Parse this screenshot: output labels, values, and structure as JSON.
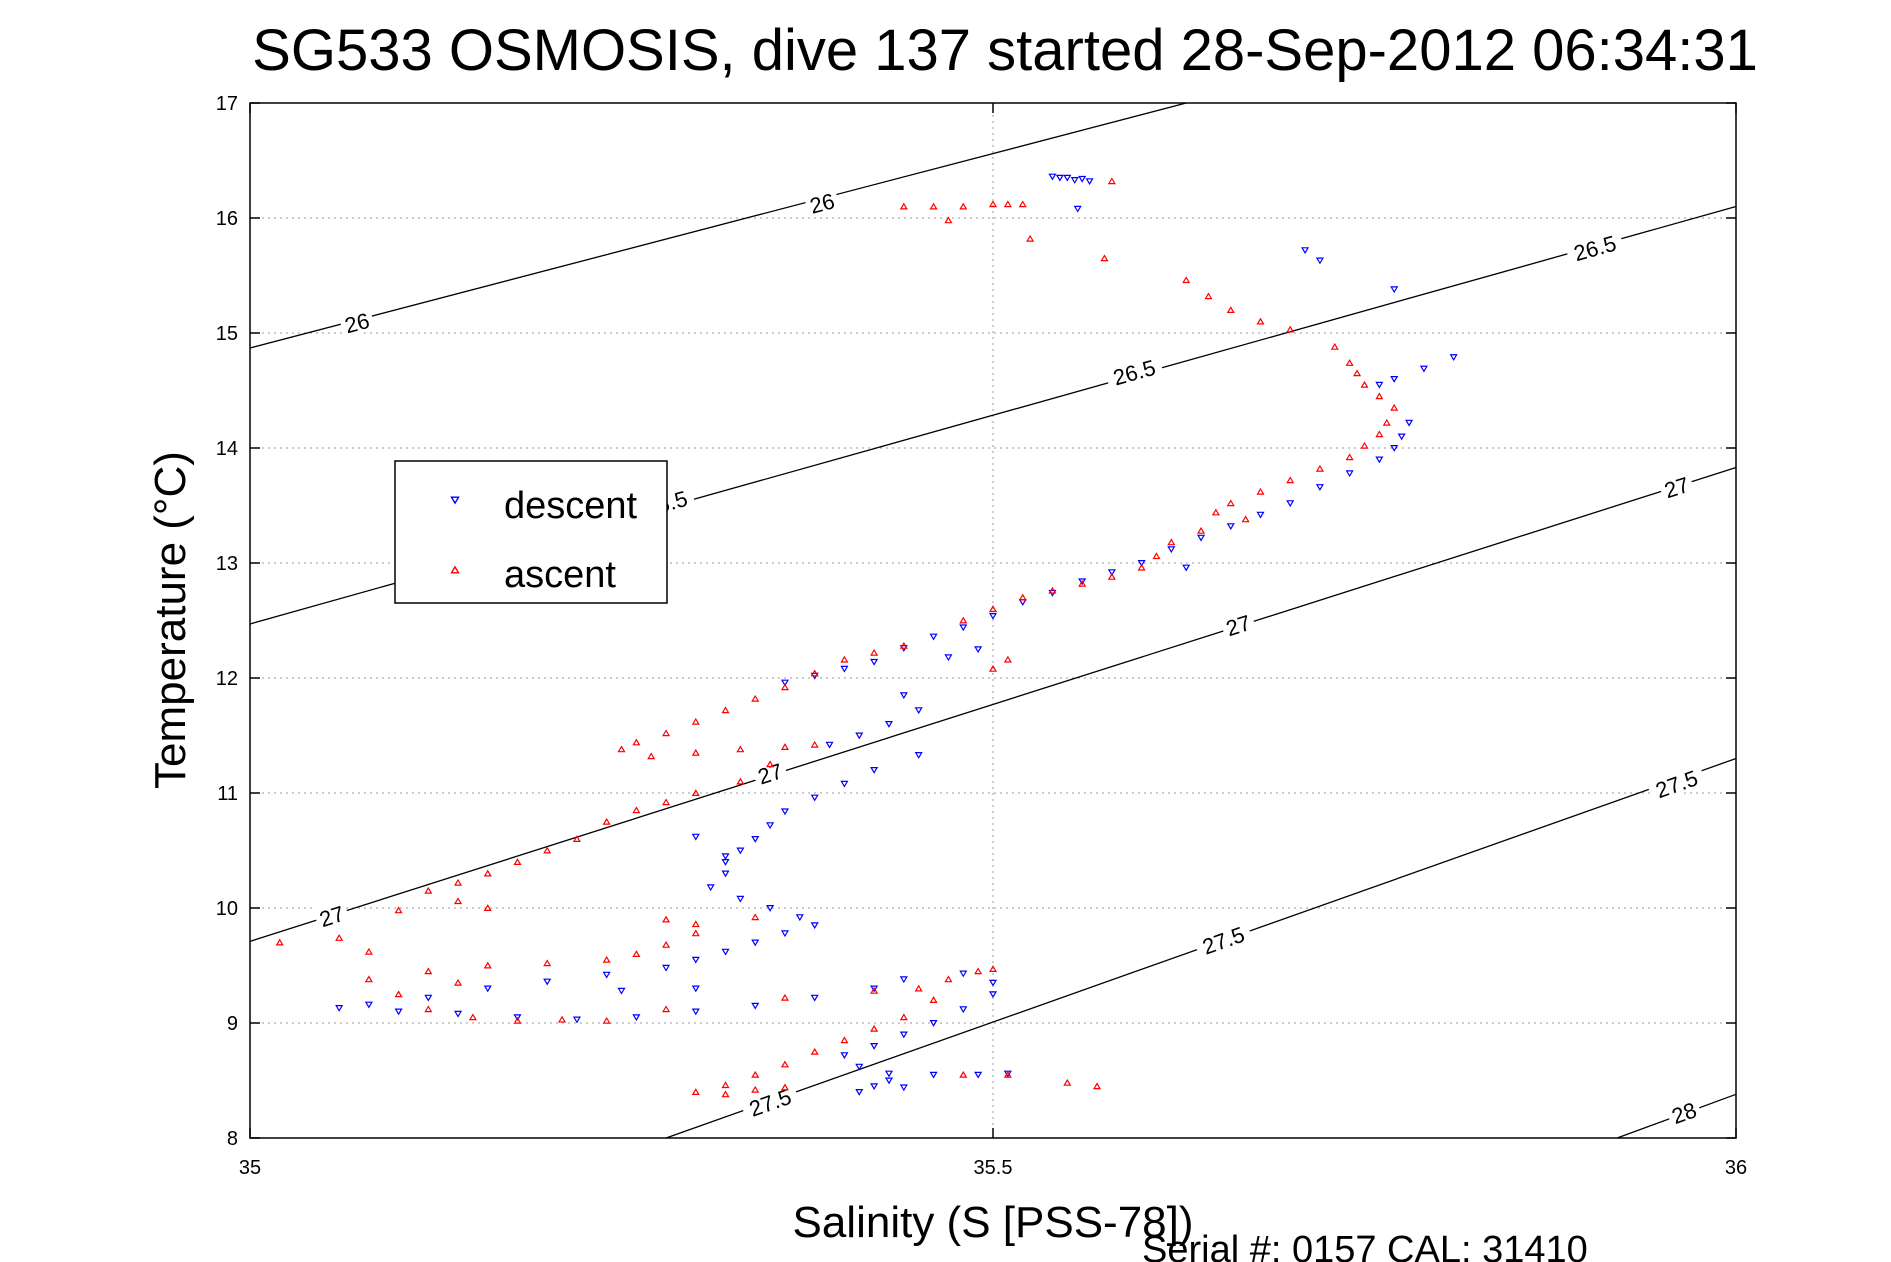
{
  "chart_data": {
    "type": "scatter",
    "title": "SG533 OSMOSIS, dive 137 started 28-Sep-2012 06:34:31",
    "xlabel": "Salinity (S [PSS-78])",
    "ylabel": "Temperature (°C)",
    "xlim": [
      35,
      36
    ],
    "ylim": [
      8,
      17
    ],
    "x_ticks": [
      {
        "value": 35,
        "label": "35"
      },
      {
        "value": 35.5,
        "label": "35.5"
      },
      {
        "value": 36,
        "label": "36"
      }
    ],
    "y_ticks": [
      {
        "value": 8,
        "label": "8"
      },
      {
        "value": 9,
        "label": "9"
      },
      {
        "value": 10,
        "label": "10"
      },
      {
        "value": 11,
        "label": "11"
      },
      {
        "value": 12,
        "label": "12"
      },
      {
        "value": 13,
        "label": "13"
      },
      {
        "value": 14,
        "label": "14"
      },
      {
        "value": 15,
        "label": "15"
      },
      {
        "value": 16,
        "label": "16"
      },
      {
        "value": 17,
        "label": "17"
      }
    ],
    "grid": true,
    "legend_position": "left",
    "density_contours": [
      {
        "level": "26",
        "points": [
          [
            35,
            14.87
          ],
          [
            35.63,
            17.0
          ]
        ],
        "labels": [
          {
            "x": 35.072,
            "y": 15.09,
            "text": "26"
          },
          {
            "x": 35.385,
            "y": 16.13,
            "text": "26"
          }
        ]
      },
      {
        "level": "26.5",
        "points": [
          [
            35,
            12.47
          ],
          [
            36,
            16.1
          ]
        ],
        "labels": [
          {
            "x": 35.28,
            "y": 13.52,
            "text": "26.5"
          },
          {
            "x": 35.595,
            "y": 14.66,
            "text": "26.5"
          },
          {
            "x": 35.905,
            "y": 15.74,
            "text": "26.5"
          }
        ]
      },
      {
        "level": "27",
        "points": [
          [
            35,
            9.71
          ],
          [
            36,
            13.83
          ]
        ],
        "labels": [
          {
            "x": 35.055,
            "y": 9.93,
            "text": "27"
          },
          {
            "x": 35.35,
            "y": 11.17,
            "text": "27"
          },
          {
            "x": 35.665,
            "y": 12.46,
            "text": "27"
          },
          {
            "x": 35.96,
            "y": 13.66,
            "text": "27"
          }
        ]
      },
      {
        "level": "27.5",
        "points": [
          [
            35.28,
            8.0
          ],
          [
            36,
            11.3
          ]
        ],
        "labels": [
          {
            "x": 35.35,
            "y": 8.31,
            "text": "27.5"
          },
          {
            "x": 35.655,
            "y": 9.72,
            "text": "27.5"
          },
          {
            "x": 35.96,
            "y": 11.08,
            "text": "27.5"
          }
        ]
      },
      {
        "level": "28",
        "points": [
          [
            35.92,
            8.0
          ],
          [
            36,
            8.38
          ]
        ],
        "labels": [
          {
            "x": 35.965,
            "y": 8.22,
            "text": "28"
          }
        ]
      }
    ],
    "series": [
      {
        "name": "descent",
        "color": "#0000ff",
        "marker": "triangle-down",
        "points": [
          [
            35.54,
            16.36
          ],
          [
            35.55,
            16.35
          ],
          [
            35.56,
            16.34
          ],
          [
            35.555,
            16.33
          ],
          [
            35.545,
            16.35
          ],
          [
            35.565,
            16.32
          ],
          [
            35.557,
            16.08
          ],
          [
            35.71,
            15.72
          ],
          [
            35.72,
            15.63
          ],
          [
            35.77,
            15.38
          ],
          [
            35.81,
            14.79
          ],
          [
            35.79,
            14.69
          ],
          [
            35.77,
            14.6
          ],
          [
            35.76,
            14.55
          ],
          [
            35.78,
            14.22
          ],
          [
            35.775,
            14.1
          ],
          [
            35.77,
            14.0
          ],
          [
            35.76,
            13.9
          ],
          [
            35.74,
            13.78
          ],
          [
            35.72,
            13.66
          ],
          [
            35.7,
            13.52
          ],
          [
            35.68,
            13.42
          ],
          [
            35.66,
            13.32
          ],
          [
            35.64,
            13.22
          ],
          [
            35.62,
            13.12
          ],
          [
            35.6,
            13.0
          ],
          [
            35.63,
            12.96
          ],
          [
            35.58,
            12.92
          ],
          [
            35.56,
            12.84
          ],
          [
            35.54,
            12.74
          ],
          [
            35.52,
            12.66
          ],
          [
            35.5,
            12.54
          ],
          [
            35.48,
            12.44
          ],
          [
            35.46,
            12.36
          ],
          [
            35.44,
            12.26
          ],
          [
            35.42,
            12.14
          ],
          [
            35.4,
            12.08
          ],
          [
            35.38,
            12.02
          ],
          [
            35.36,
            11.96
          ],
          [
            35.47,
            12.18
          ],
          [
            35.49,
            12.25
          ],
          [
            35.44,
            11.85
          ],
          [
            35.45,
            11.72
          ],
          [
            35.43,
            11.6
          ],
          [
            35.41,
            11.5
          ],
          [
            35.39,
            11.42
          ],
          [
            35.45,
            11.33
          ],
          [
            35.42,
            11.2
          ],
          [
            35.4,
            11.08
          ],
          [
            35.38,
            10.96
          ],
          [
            35.36,
            10.84
          ],
          [
            35.35,
            10.72
          ],
          [
            35.34,
            10.6
          ],
          [
            35.33,
            10.5
          ],
          [
            35.32,
            10.4
          ],
          [
            35.32,
            10.3
          ],
          [
            35.31,
            10.18
          ],
          [
            35.33,
            10.08
          ],
          [
            35.35,
            10.0
          ],
          [
            35.37,
            9.92
          ],
          [
            35.38,
            9.85
          ],
          [
            35.36,
            9.78
          ],
          [
            35.34,
            9.7
          ],
          [
            35.32,
            9.62
          ],
          [
            35.3,
            9.55
          ],
          [
            35.28,
            9.48
          ],
          [
            35.24,
            9.42
          ],
          [
            35.2,
            9.36
          ],
          [
            35.16,
            9.3
          ],
          [
            35.12,
            9.22
          ],
          [
            35.08,
            9.16
          ],
          [
            35.06,
            9.13
          ],
          [
            35.1,
            9.1
          ],
          [
            35.14,
            9.08
          ],
          [
            35.18,
            9.05
          ],
          [
            35.22,
            9.03
          ],
          [
            35.26,
            9.05
          ],
          [
            35.3,
            9.1
          ],
          [
            35.34,
            9.15
          ],
          [
            35.38,
            9.22
          ],
          [
            35.42,
            9.3
          ],
          [
            35.44,
            9.38
          ],
          [
            35.48,
            9.43
          ],
          [
            35.5,
            9.35
          ],
          [
            35.5,
            9.25
          ],
          [
            35.48,
            9.12
          ],
          [
            35.46,
            9.0
          ],
          [
            35.44,
            8.9
          ],
          [
            35.42,
            8.8
          ],
          [
            35.4,
            8.72
          ],
          [
            35.41,
            8.62
          ],
          [
            35.43,
            8.56
          ],
          [
            35.46,
            8.55
          ],
          [
            35.49,
            8.55
          ],
          [
            35.51,
            8.56
          ],
          [
            35.43,
            8.5
          ],
          [
            35.42,
            8.45
          ],
          [
            35.41,
            8.4
          ],
          [
            35.44,
            8.44
          ],
          [
            35.3,
            9.3
          ],
          [
            35.25,
            9.28
          ],
          [
            35.32,
            10.45
          ],
          [
            35.3,
            10.62
          ]
        ]
      },
      {
        "name": "ascent",
        "color": "#ff0000",
        "marker": "triangle-up",
        "points": [
          [
            35.44,
            16.1
          ],
          [
            35.46,
            16.1
          ],
          [
            35.48,
            16.1
          ],
          [
            35.5,
            16.12
          ],
          [
            35.52,
            16.12
          ],
          [
            35.51,
            16.12
          ],
          [
            35.47,
            15.98
          ],
          [
            35.525,
            15.82
          ],
          [
            35.58,
            16.32
          ],
          [
            35.575,
            15.65
          ],
          [
            35.63,
            15.46
          ],
          [
            35.645,
            15.32
          ],
          [
            35.66,
            15.2
          ],
          [
            35.68,
            15.1
          ],
          [
            35.7,
            15.03
          ],
          [
            35.73,
            14.88
          ],
          [
            35.74,
            14.74
          ],
          [
            35.745,
            14.65
          ],
          [
            35.75,
            14.55
          ],
          [
            35.76,
            14.45
          ],
          [
            35.77,
            14.35
          ],
          [
            35.765,
            14.22
          ],
          [
            35.76,
            14.12
          ],
          [
            35.75,
            14.02
          ],
          [
            35.74,
            13.92
          ],
          [
            35.72,
            13.82
          ],
          [
            35.7,
            13.72
          ],
          [
            35.68,
            13.62
          ],
          [
            35.66,
            13.52
          ],
          [
            35.65,
            13.44
          ],
          [
            35.67,
            13.38
          ],
          [
            35.64,
            13.28
          ],
          [
            35.62,
            13.18
          ],
          [
            35.61,
            13.06
          ],
          [
            35.6,
            12.96
          ],
          [
            35.58,
            12.88
          ],
          [
            35.56,
            12.82
          ],
          [
            35.54,
            12.76
          ],
          [
            35.52,
            12.7
          ],
          [
            35.5,
            12.6
          ],
          [
            35.48,
            12.5
          ],
          [
            35.44,
            12.28
          ],
          [
            35.42,
            12.22
          ],
          [
            35.4,
            12.16
          ],
          [
            35.38,
            12.04
          ],
          [
            35.36,
            11.92
          ],
          [
            35.34,
            11.82
          ],
          [
            35.32,
            11.72
          ],
          [
            35.3,
            11.62
          ],
          [
            35.28,
            11.52
          ],
          [
            35.26,
            11.44
          ],
          [
            35.25,
            11.38
          ],
          [
            35.27,
            11.32
          ],
          [
            35.3,
            11.35
          ],
          [
            35.33,
            11.38
          ],
          [
            35.36,
            11.4
          ],
          [
            35.38,
            11.42
          ],
          [
            35.35,
            11.25
          ],
          [
            35.33,
            11.1
          ],
          [
            35.3,
            11.0
          ],
          [
            35.28,
            10.92
          ],
          [
            35.26,
            10.85
          ],
          [
            35.24,
            10.75
          ],
          [
            35.22,
            10.6
          ],
          [
            35.2,
            10.5
          ],
          [
            35.18,
            10.4
          ],
          [
            35.16,
            10.3
          ],
          [
            35.14,
            10.22
          ],
          [
            35.12,
            10.15
          ],
          [
            35.14,
            10.06
          ],
          [
            35.16,
            10.0
          ],
          [
            35.1,
            9.98
          ],
          [
            35.28,
            9.9
          ],
          [
            35.3,
            9.86
          ],
          [
            35.34,
            9.92
          ],
          [
            35.3,
            9.78
          ],
          [
            35.28,
            9.68
          ],
          [
            35.26,
            9.6
          ],
          [
            35.24,
            9.55
          ],
          [
            35.2,
            9.52
          ],
          [
            35.16,
            9.5
          ],
          [
            35.12,
            9.45
          ],
          [
            35.08,
            9.38
          ],
          [
            35.02,
            9.7
          ],
          [
            35.06,
            9.74
          ],
          [
            35.08,
            9.62
          ],
          [
            35.14,
            9.35
          ],
          [
            35.1,
            9.25
          ],
          [
            35.12,
            9.12
          ],
          [
            35.15,
            9.05
          ],
          [
            35.18,
            9.02
          ],
          [
            35.21,
            9.03
          ],
          [
            35.24,
            9.02
          ],
          [
            35.28,
            9.12
          ],
          [
            35.36,
            9.22
          ],
          [
            35.42,
            9.28
          ],
          [
            35.45,
            9.3
          ],
          [
            35.47,
            9.38
          ],
          [
            35.49,
            9.45
          ],
          [
            35.5,
            9.47
          ],
          [
            35.46,
            9.2
          ],
          [
            35.44,
            9.05
          ],
          [
            35.42,
            8.95
          ],
          [
            35.4,
            8.85
          ],
          [
            35.38,
            8.75
          ],
          [
            35.36,
            8.64
          ],
          [
            35.34,
            8.55
          ],
          [
            35.32,
            8.46
          ],
          [
            35.3,
            8.4
          ],
          [
            35.32,
            8.38
          ],
          [
            35.34,
            8.42
          ],
          [
            35.36,
            8.44
          ],
          [
            35.48,
            8.55
          ],
          [
            35.51,
            8.55
          ],
          [
            35.55,
            8.48
          ],
          [
            35.57,
            8.45
          ],
          [
            35.5,
            12.08
          ],
          [
            35.51,
            12.16
          ]
        ]
      }
    ]
  },
  "footer": {
    "serial_text": "Serial #: 0157  CAL: 31410"
  }
}
